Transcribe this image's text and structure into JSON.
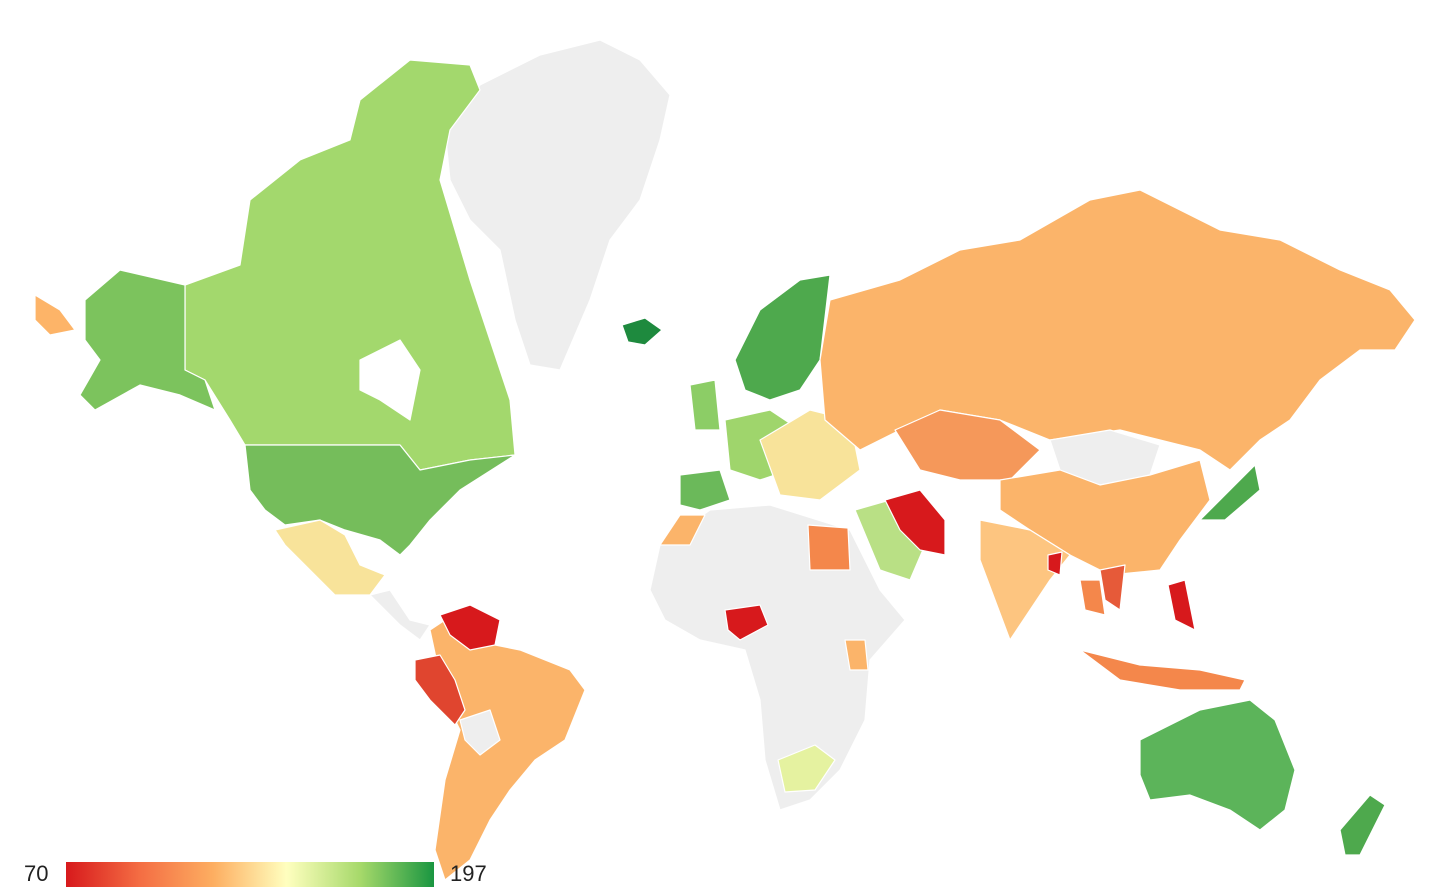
{
  "map": {
    "color_axis": {
      "min": 70,
      "max": 197,
      "colors": [
        "#d7191c",
        "#f46d43",
        "#fdae61",
        "#ffffbf",
        "#a6d96a",
        "#1a9641"
      ]
    }
  }
}
